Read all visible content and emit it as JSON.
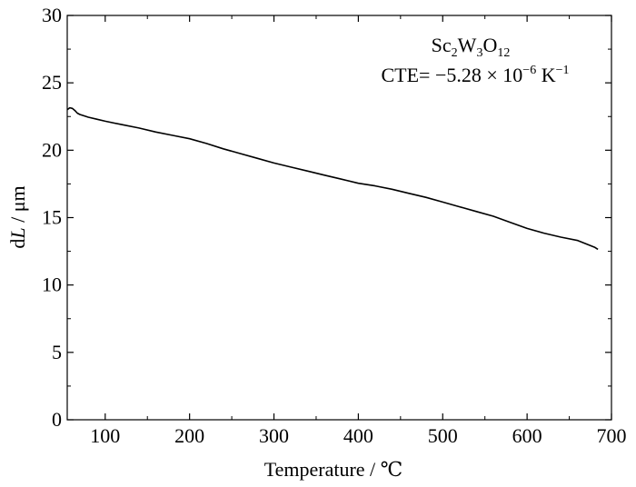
{
  "chart_data": {
    "type": "line",
    "title": "",
    "xlabel_prefix": "Temperature / ",
    "xlabel_unit": "℃",
    "ylabel_italic": "L",
    "ylabel_prefix": "d",
    "ylabel_suffix": " / μm",
    "xlim": [
      55,
      700
    ],
    "ylim": [
      0,
      30
    ],
    "xticks": [
      100,
      200,
      300,
      400,
      500,
      600,
      700
    ],
    "yticks": [
      0,
      5,
      10,
      15,
      20,
      25,
      30
    ],
    "grid": false,
    "legend": "none",
    "line_color": "#000000",
    "annotation": {
      "formula_parts": [
        {
          "text": "Sc",
          "sub": false
        },
        {
          "text": "2",
          "sub": true
        },
        {
          "text": "W",
          "sub": false
        },
        {
          "text": "3",
          "sub": true
        },
        {
          "text": "O",
          "sub": false
        },
        {
          "text": "12",
          "sub": true
        }
      ],
      "cte_label": "CTE= ",
      "cte_value": "−5.28 × 10",
      "cte_exp": "−6",
      "cte_unit": " K",
      "cte_unit_exp": "−1"
    },
    "series": [
      {
        "x": [
          55,
          58,
          61,
          64,
          67,
          70,
          75,
          80,
          90,
          100,
          120,
          140,
          160,
          180,
          200,
          220,
          240,
          260,
          280,
          300,
          320,
          340,
          360,
          380,
          400,
          420,
          440,
          460,
          480,
          500,
          520,
          540,
          560,
          580,
          600,
          620,
          640,
          660,
          680,
          684
        ],
        "y": [
          23.0,
          23.15,
          23.1,
          22.95,
          22.75,
          22.65,
          22.55,
          22.45,
          22.3,
          22.15,
          21.9,
          21.65,
          21.35,
          21.1,
          20.85,
          20.5,
          20.1,
          19.75,
          19.4,
          19.05,
          18.75,
          18.45,
          18.15,
          17.85,
          17.55,
          17.35,
          17.1,
          16.8,
          16.5,
          16.15,
          15.8,
          15.45,
          15.1,
          14.65,
          14.2,
          13.85,
          13.55,
          13.3,
          12.8,
          12.65
        ]
      }
    ]
  }
}
